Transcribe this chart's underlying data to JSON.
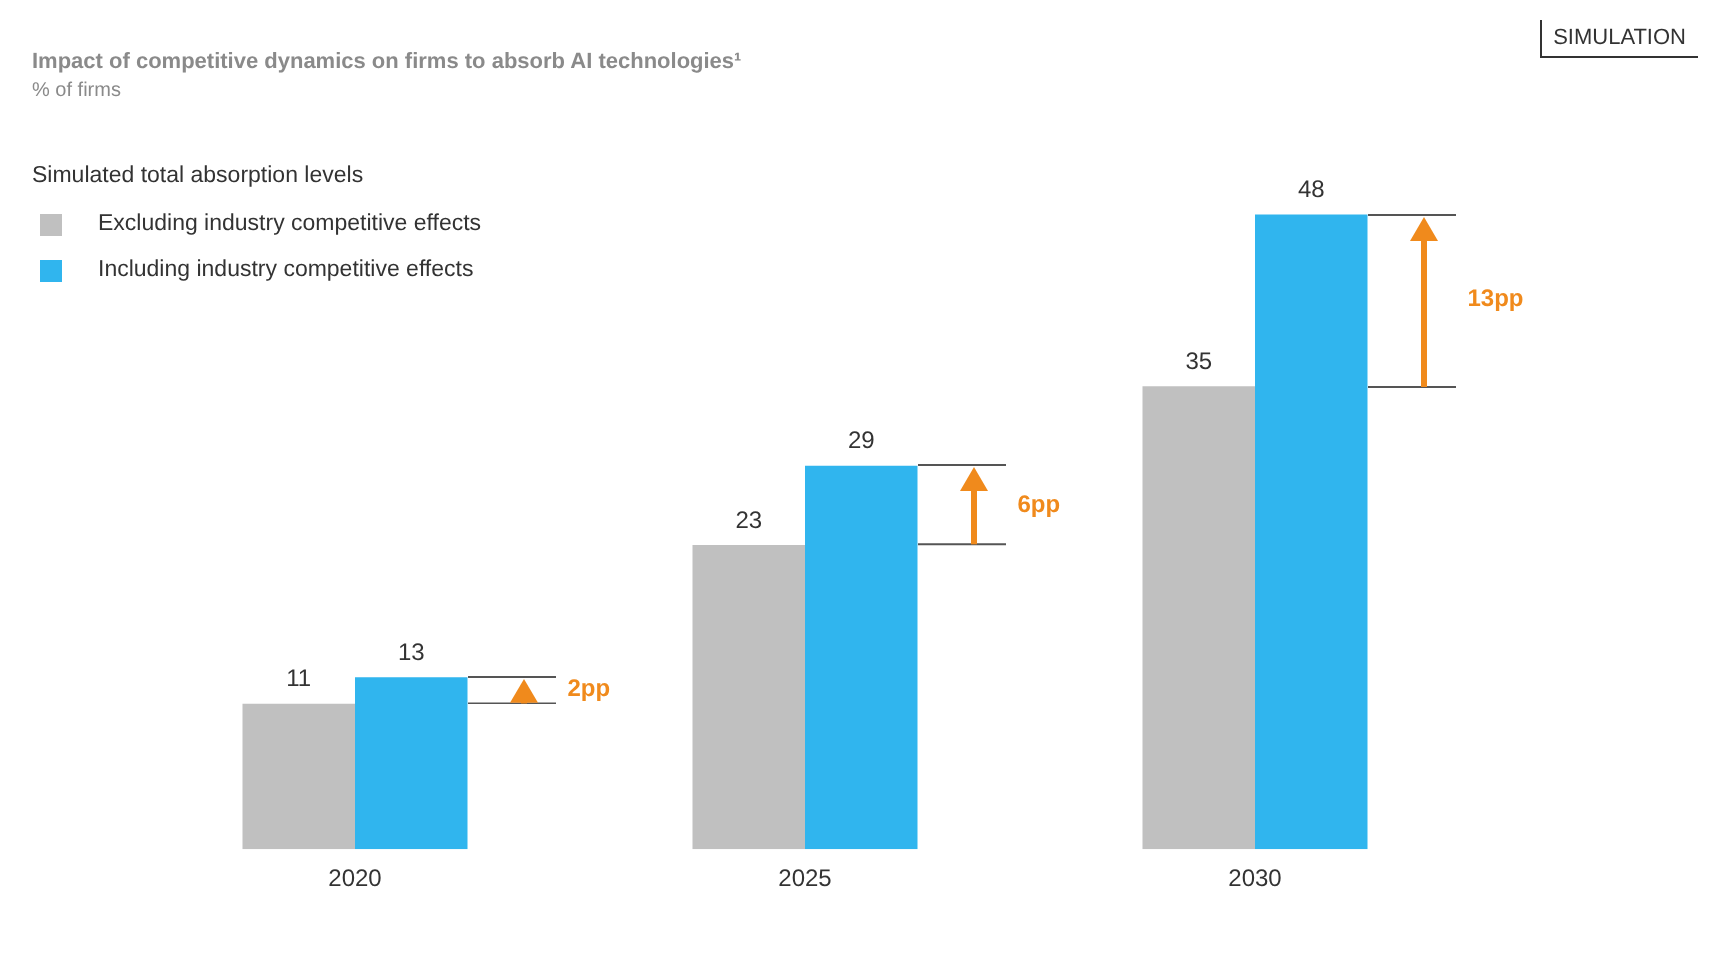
{
  "chart_data": {
    "type": "bar",
    "title": "Impact of competitive dynamics on firms to absorb AI technologies¹",
    "subtitle": "% of firms",
    "legend_title": "Simulated total absorption levels",
    "categories": [
      "2020",
      "2025",
      "2030"
    ],
    "series": [
      {
        "name": "Excluding industry competitive effects",
        "color": "#c0c0c0",
        "values": [
          11,
          23,
          35
        ]
      },
      {
        "name": "Including industry competitive effects",
        "color": "#30b5ee",
        "values": [
          13,
          29,
          48
        ]
      }
    ],
    "data_labels": true,
    "tick_labels": "x",
    "grid": false,
    "legend": "top left",
    "annotations": [
      "SIMULATION",
      "2pp",
      "6pp",
      "13pp"
    ]
  }
}
